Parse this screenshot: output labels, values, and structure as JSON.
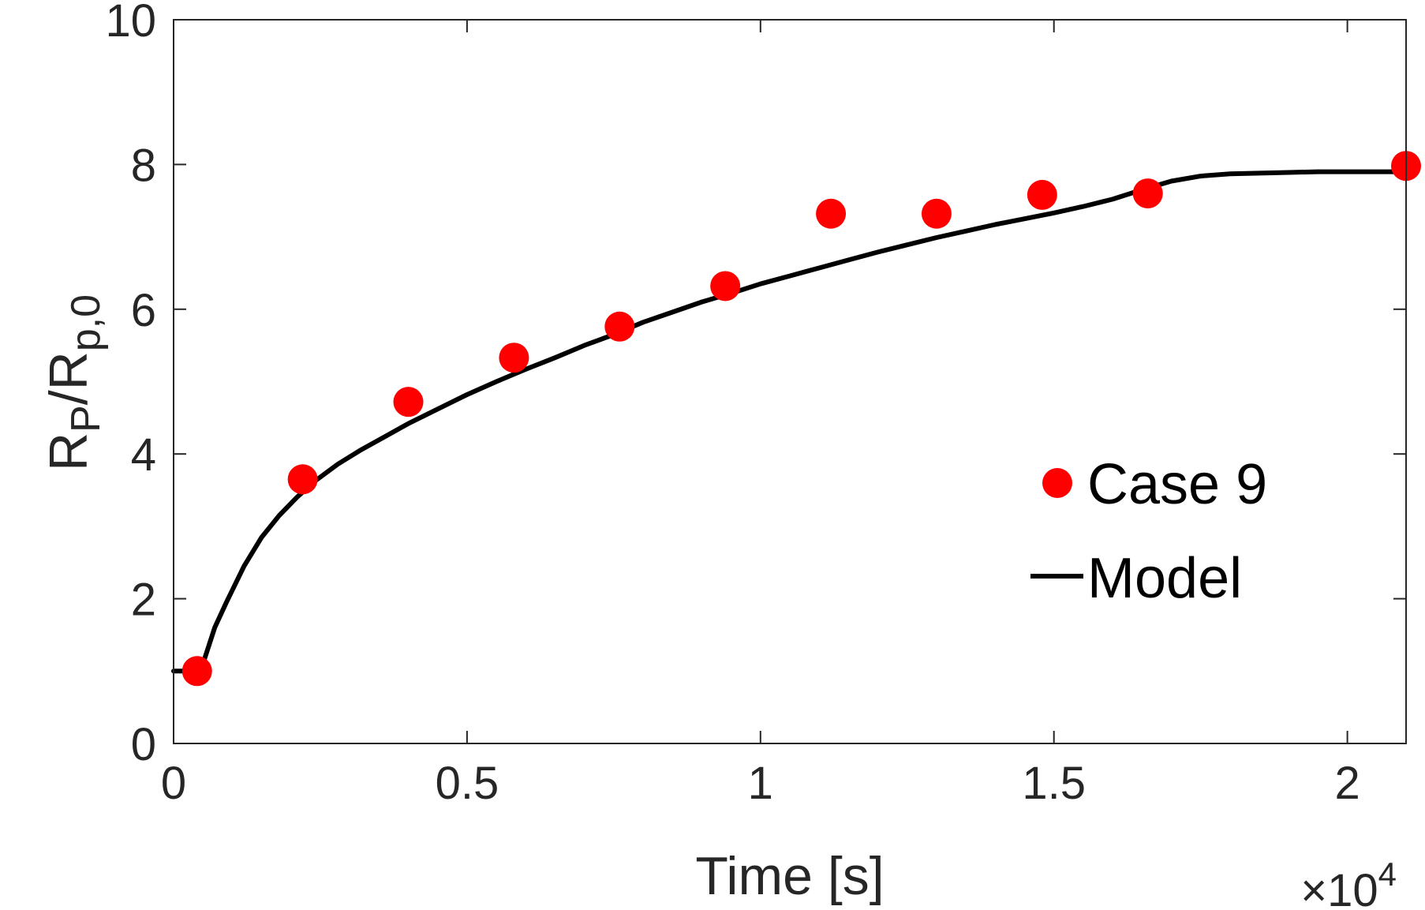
{
  "chart_data": {
    "type": "scatter",
    "title": "",
    "xlabel": "Time [s]",
    "ylabel": {
      "base": "R",
      "sub1": "P",
      "mid": "/R",
      "sub2": "p,0"
    },
    "x_multiplier": {
      "prefix": "×10",
      "exponent": "4"
    },
    "xlim": [
      0,
      21000
    ],
    "ylim": [
      0,
      10
    ],
    "x_ticks": [
      0,
      5000,
      10000,
      15000,
      20000
    ],
    "x_tick_labels": [
      "0",
      "0.5",
      "1",
      "1.5",
      "2"
    ],
    "y_ticks": [
      0,
      2,
      4,
      6,
      8,
      10
    ],
    "y_tick_labels": [
      "0",
      "2",
      "4",
      "6",
      "8",
      "10"
    ],
    "legend_position": "right-center",
    "series": [
      {
        "name": "Case 9",
        "kind": "markers",
        "color": "#ff0000",
        "x": [
          400,
          2200,
          4000,
          5800,
          7600,
          9400,
          11200,
          13000,
          14800,
          16600,
          21000
        ],
        "y": [
          1.0,
          3.65,
          4.72,
          5.33,
          5.76,
          6.32,
          7.32,
          7.32,
          7.58,
          7.6,
          7.98
        ]
      },
      {
        "name": "Model",
        "kind": "line",
        "color": "#000000",
        "x": [
          0,
          200,
          400,
          450,
          500,
          700,
          900,
          1200,
          1500,
          1800,
          2100,
          2400,
          2800,
          3200,
          3600,
          4000,
          4500,
          5000,
          5500,
          6000,
          6500,
          7000,
          7500,
          8000,
          8500,
          9000,
          9500,
          10000,
          10500,
          11000,
          11500,
          12000,
          12500,
          13000,
          13500,
          14000,
          14500,
          15000,
          15500,
          16000,
          16500,
          17000,
          17500,
          18000,
          18500,
          19000,
          19500,
          20000,
          20500,
          21000
        ],
        "y": [
          1.0,
          1.0,
          1.0,
          1.03,
          1.1,
          1.6,
          1.95,
          2.45,
          2.85,
          3.15,
          3.4,
          3.62,
          3.86,
          4.06,
          4.24,
          4.42,
          4.62,
          4.82,
          5.0,
          5.17,
          5.33,
          5.5,
          5.65,
          5.82,
          5.96,
          6.1,
          6.22,
          6.35,
          6.46,
          6.57,
          6.68,
          6.79,
          6.89,
          6.99,
          7.08,
          7.17,
          7.25,
          7.33,
          7.42,
          7.52,
          7.65,
          7.77,
          7.84,
          7.87,
          7.88,
          7.89,
          7.9,
          7.9,
          7.9,
          7.9
        ]
      }
    ]
  }
}
